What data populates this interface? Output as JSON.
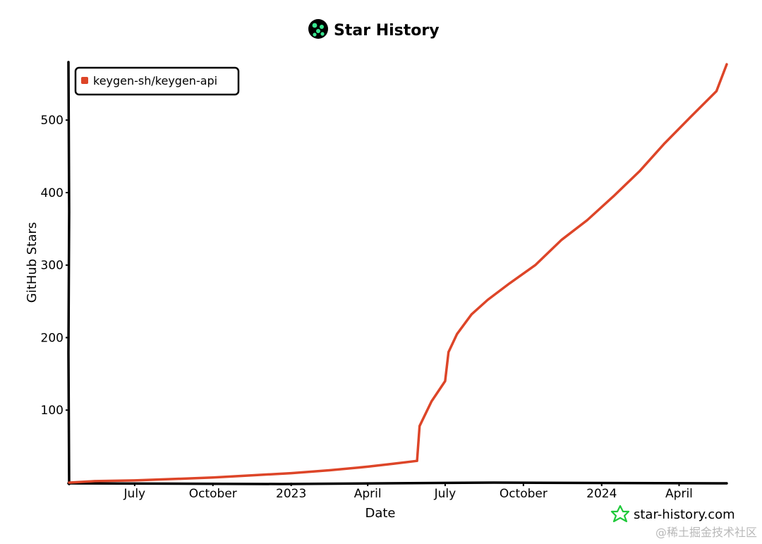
{
  "header": {
    "title": "Star History",
    "logo_icon": "star-history-logo-icon"
  },
  "chart_data": {
    "type": "line",
    "title": "Star History",
    "xlabel": "Date",
    "ylabel": "GitHub Stars",
    "x_ticks": [
      "July",
      "October",
      "2023",
      "April",
      "July",
      "October",
      "2024",
      "April"
    ],
    "y_ticks": [
      100,
      200,
      300,
      400,
      500
    ],
    "ylim": [
      0,
      580
    ],
    "xlim": [
      "2022-04-15",
      "2024-05-27"
    ],
    "grid": false,
    "legend_position": "top-left",
    "series": [
      {
        "name": "keygen-sh/keygen-api",
        "color": "#dd4528",
        "points": [
          [
            "2022-04-15",
            0
          ],
          [
            "2022-05-15",
            2
          ],
          [
            "2022-07-01",
            3
          ],
          [
            "2022-08-15",
            5
          ],
          [
            "2022-10-01",
            7
          ],
          [
            "2022-11-15",
            10
          ],
          [
            "2023-01-01",
            13
          ],
          [
            "2023-02-15",
            17
          ],
          [
            "2023-03-15",
            20
          ],
          [
            "2023-04-01",
            22
          ],
          [
            "2023-05-01",
            26
          ],
          [
            "2023-05-29",
            30
          ],
          [
            "2023-06-01",
            78
          ],
          [
            "2023-06-15",
            112
          ],
          [
            "2023-07-01",
            140
          ],
          [
            "2023-07-05",
            180
          ],
          [
            "2023-07-15",
            205
          ],
          [
            "2023-08-01",
            232
          ],
          [
            "2023-08-20",
            252
          ],
          [
            "2023-09-15",
            275
          ],
          [
            "2023-10-15",
            300
          ],
          [
            "2023-11-15",
            335
          ],
          [
            "2023-12-15",
            362
          ],
          [
            "2024-01-15",
            395
          ],
          [
            "2024-02-15",
            430
          ],
          [
            "2024-03-15",
            468
          ],
          [
            "2024-04-15",
            505
          ],
          [
            "2024-05-15",
            540
          ],
          [
            "2024-05-27",
            577
          ]
        ]
      }
    ]
  },
  "watermark": {
    "text": "star-history.com",
    "icon": "star-outline-icon",
    "icon_color": "#1fc93a"
  },
  "credit": {
    "text": "@稀土掘金技术社区"
  }
}
